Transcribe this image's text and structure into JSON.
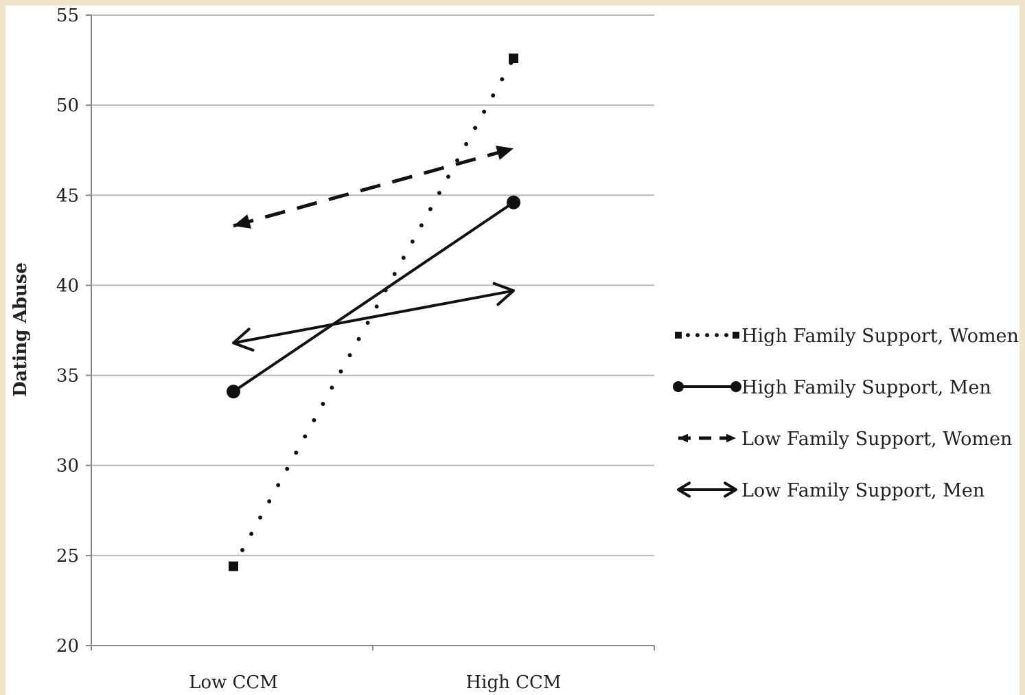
{
  "chart_data": {
    "type": "line",
    "title": "",
    "xlabel": "",
    "ylabel": "Dating Abuse",
    "categories": [
      "Low CCM",
      "High CCM"
    ],
    "ylim": [
      20,
      55
    ],
    "yticks": [
      20,
      25,
      30,
      35,
      40,
      45,
      50,
      55
    ],
    "grid": true,
    "legend_position": "right",
    "series": [
      {
        "name": "High Family Support, Women",
        "values": [
          24.4,
          52.6
        ],
        "style": "dotted",
        "marker": "square"
      },
      {
        "name": "High Family Support, Men",
        "values": [
          34.1,
          44.6
        ],
        "style": "solid",
        "marker": "circle"
      },
      {
        "name": "Low Family Support, Women",
        "values": [
          43.3,
          47.6
        ],
        "style": "dashed",
        "marker": "triangle"
      },
      {
        "name": "Low Family Support, Men",
        "values": [
          36.8,
          39.7
        ],
        "style": "solid",
        "marker": "arrow"
      }
    ],
    "colors": {
      "line": "#111111",
      "grid": "#b8b8b8",
      "axis": "#888888",
      "border": "#efe3c8"
    }
  }
}
